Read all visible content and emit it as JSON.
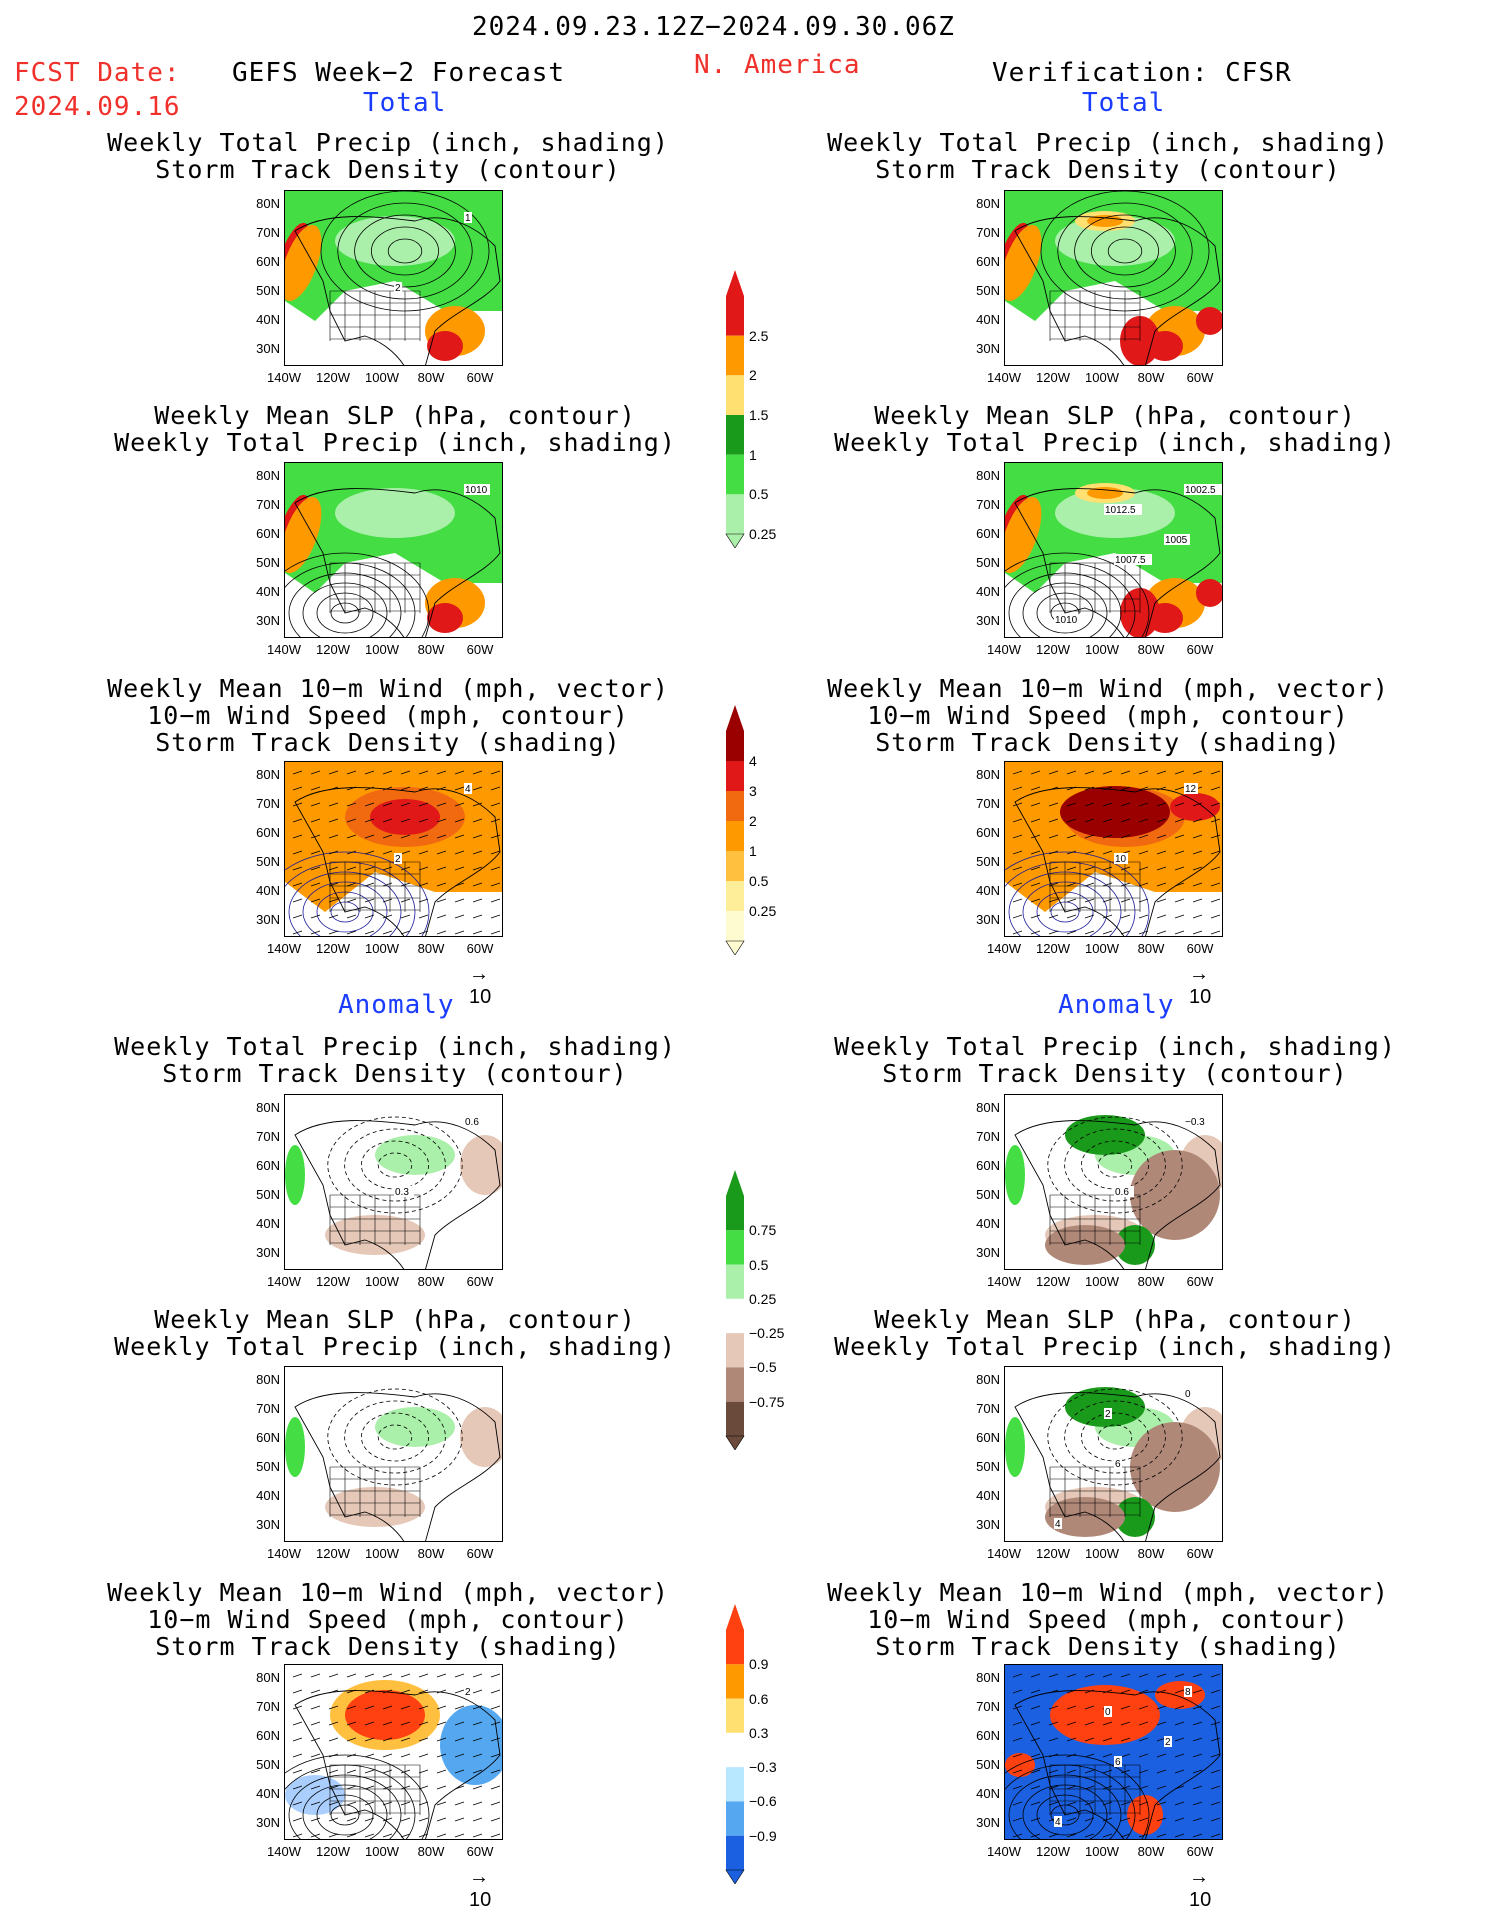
{
  "header": {
    "date_range": "2024.09.23.12Z−2024.09.30.06Z",
    "fcst_label": "FCST Date:",
    "fcst_date": "2024.09.16",
    "model": "GEFS Week−2 Forecast",
    "region": "N. America",
    "verification": "Verification: CFSR"
  },
  "sections": {
    "total_label": "Total",
    "anomaly_label": "Anomaly"
  },
  "panel_titles": {
    "precip_track": [
      "Weekly Total Precip (inch, shading)",
      "Storm Track Density (contour)"
    ],
    "slp_precip": [
      "Weekly Mean SLP (hPa, contour)",
      "Weekly Total Precip (inch, shading)"
    ],
    "wind_track": [
      "Weekly Mean 10−m Wind (mph, vector)",
      "10−m Wind Speed (mph, contour)",
      "Storm Track Density (shading)"
    ]
  },
  "axes": {
    "lat_ticks": [
      "80N",
      "70N",
      "60N",
      "50N",
      "40N",
      "30N"
    ],
    "lon_ticks": [
      "140W",
      "120W",
      "100W",
      "80W",
      "60W"
    ]
  },
  "vector_scale": "10",
  "colorbars": {
    "precip_total": {
      "labels": [
        "2.5",
        "2",
        "1.5",
        "1",
        "0.5",
        "0.25"
      ],
      "colors": [
        "#e01818",
        "#ff9900",
        "#ffe070",
        "#1a9a1a",
        "#44dd44",
        "#aaf0aa"
      ]
    },
    "track_total": {
      "labels": [
        "4",
        "3",
        "2",
        "1",
        "0.5",
        "0.25"
      ],
      "colors": [
        "#9a0000",
        "#e01818",
        "#f26a10",
        "#ff9900",
        "#ffc040",
        "#ffee99",
        "#fffbd0"
      ]
    },
    "precip_anom": {
      "labels": [
        "0.75",
        "0.5",
        "0.25",
        "−0.25",
        "−0.5",
        "−0.75"
      ],
      "colors": [
        "#1a9a1a",
        "#44dd44",
        "#aaf0aa",
        "#ffffff",
        "#e6c8b8",
        "#b08878",
        "#6a4a3a"
      ]
    },
    "track_anom": {
      "labels": [
        "0.9",
        "0.6",
        "0.3",
        "−0.3",
        "−0.6",
        "−0.9"
      ],
      "colors": [
        "#ff4010",
        "#ff9900",
        "#ffe070",
        "#ffffff",
        "#b8e8ff",
        "#55a8f0",
        "#1a60e0"
      ]
    }
  },
  "panels": {
    "fcst_total_precip": {
      "contour_labels": [
        "1",
        "2"
      ]
    },
    "fcst_total_slp": {
      "contour_labels": [
        "1010"
      ]
    },
    "fcst_total_wind": {
      "contour_labels": [
        "4",
        "2"
      ]
    },
    "ver_total_slp": {
      "contour_labels": [
        "1002.5",
        "1007.5",
        "1010",
        "1012.5",
        "1005"
      ]
    },
    "ver_total_wind": {
      "contour_labels": [
        "12",
        "10"
      ]
    },
    "fcst_anom_precip": {
      "contour_labels": [
        "0.6",
        "0.3"
      ]
    },
    "ver_anom_precip": {
      "contour_labels": [
        "−0.3",
        "0.6"
      ]
    },
    "ver_anom_slp": {
      "contour_labels": [
        "0",
        "6",
        "4",
        "2"
      ]
    },
    "fcst_anom_wind": {
      "contour_labels": [
        "2"
      ]
    },
    "ver_anom_wind": {
      "contour_labels": [
        "8",
        "6",
        "4",
        "0",
        "2"
      ]
    }
  }
}
